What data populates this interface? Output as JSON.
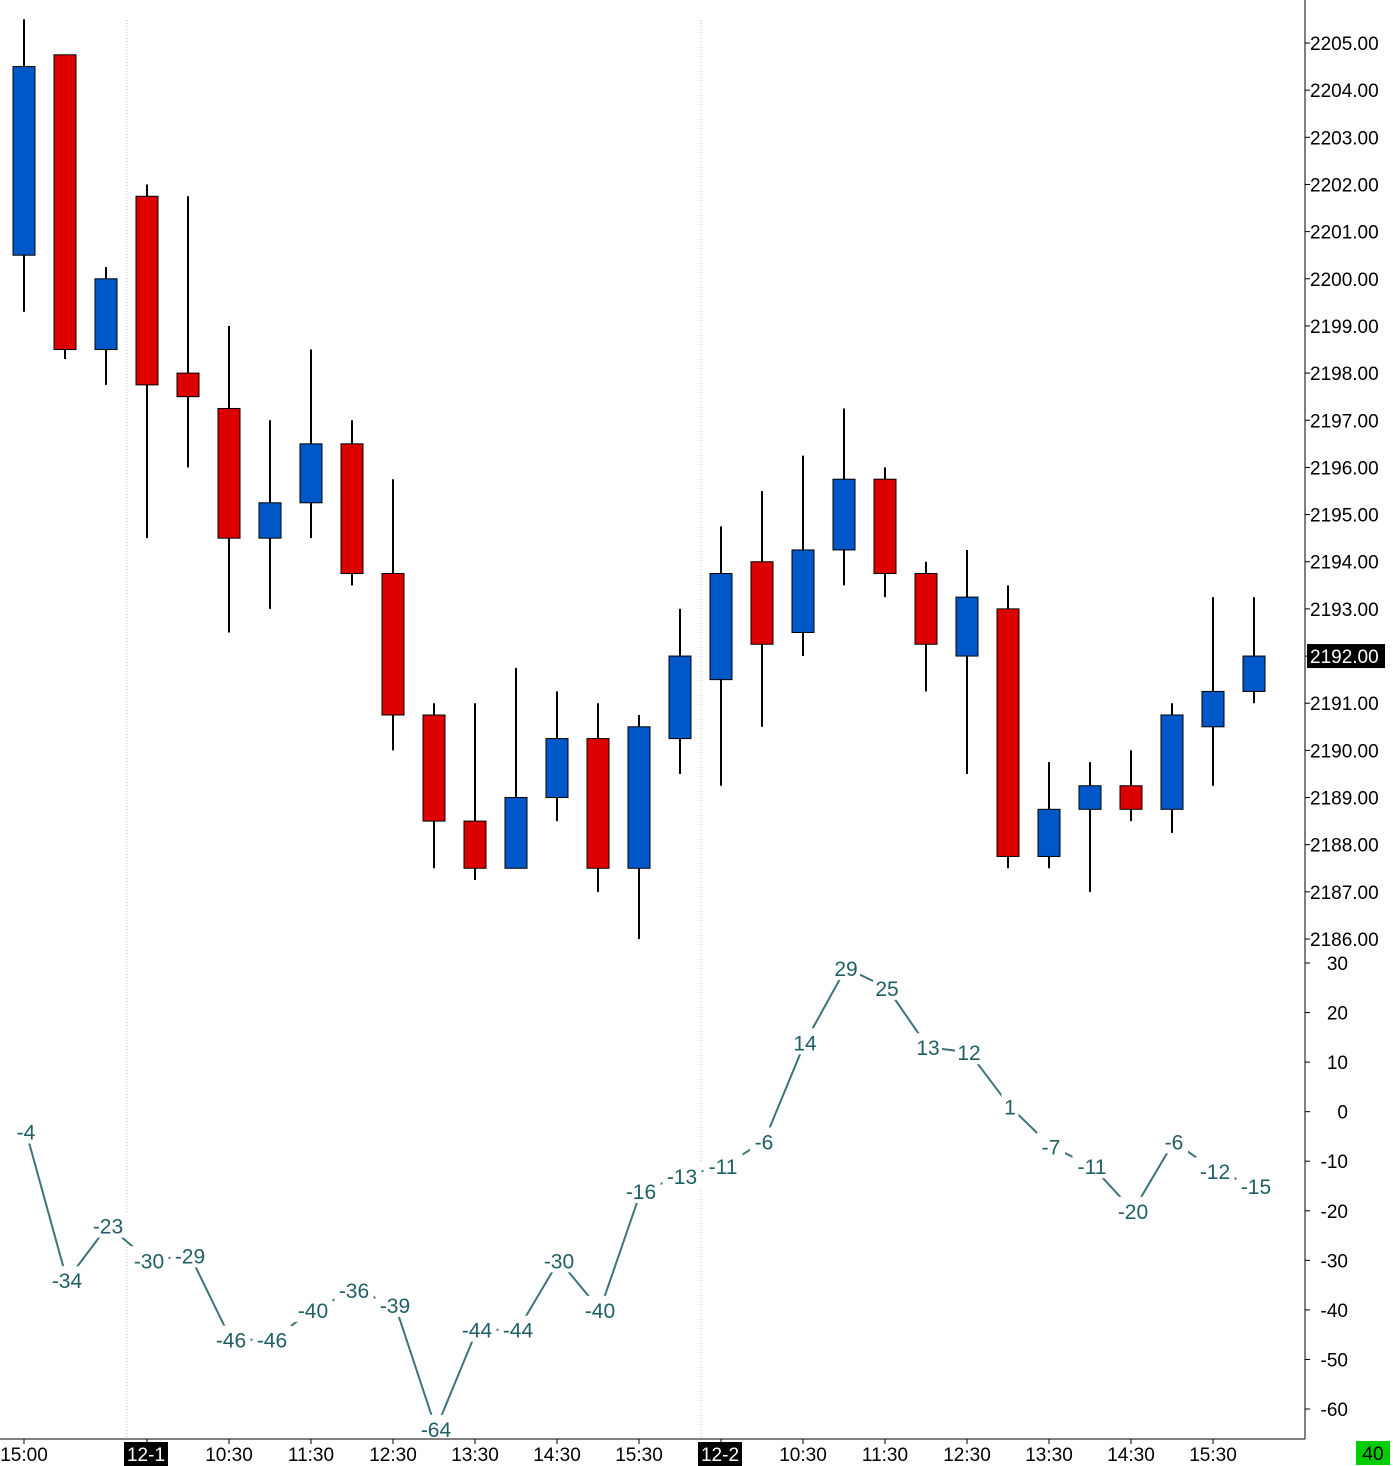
{
  "chart_data": [
    {
      "type": "candlestick",
      "ylim": [
        2185.6,
        2206.0
      ],
      "y_ticks": [
        "2205.00",
        "2204.00",
        "2203.00",
        "2202.00",
        "2201.00",
        "2200.00",
        "2199.00",
        "2198.00",
        "2197.00",
        "2196.00",
        "2195.00",
        "2194.00",
        "2193.00",
        "2192.00",
        "2191.00",
        "2190.00",
        "2189.00",
        "2188.00",
        "2187.00",
        "2186.00"
      ],
      "last_price_label": "2192.00",
      "last_price": 2192.0,
      "colors": {
        "up": "#0057c8",
        "down": "#dd0000",
        "wick": "#000000"
      },
      "candles": [
        {
          "o": 2200.5,
          "h": 2205.5,
          "l": 2199.3,
          "c": 2204.5
        },
        {
          "o": 2204.75,
          "h": 2204.75,
          "l": 2198.3,
          "c": 2198.5
        },
        {
          "o": 2198.5,
          "h": 2200.25,
          "l": 2197.75,
          "c": 2200.0
        },
        {
          "o": 2201.75,
          "h": 2202.0,
          "l": 2194.5,
          "c": 2197.75
        },
        {
          "o": 2198.0,
          "h": 2201.75,
          "l": 2196.0,
          "c": 2197.5
        },
        {
          "o": 2197.25,
          "h": 2199.0,
          "l": 2192.5,
          "c": 2194.5
        },
        {
          "o": 2194.5,
          "h": 2197.0,
          "l": 2193.0,
          "c": 2195.25
        },
        {
          "o": 2195.25,
          "h": 2198.5,
          "l": 2194.5,
          "c": 2196.5
        },
        {
          "o": 2196.5,
          "h": 2197.0,
          "l": 2193.5,
          "c": 2193.75
        },
        {
          "o": 2193.75,
          "h": 2195.75,
          "l": 2190.0,
          "c": 2190.75
        },
        {
          "o": 2190.75,
          "h": 2191.0,
          "l": 2187.5,
          "c": 2188.5
        },
        {
          "o": 2188.5,
          "h": 2191.0,
          "l": 2187.25,
          "c": 2187.5
        },
        {
          "o": 2187.5,
          "h": 2191.75,
          "l": 2187.5,
          "c": 2189.0
        },
        {
          "o": 2189.0,
          "h": 2191.25,
          "l": 2188.5,
          "c": 2190.25
        },
        {
          "o": 2190.25,
          "h": 2191.0,
          "l": 2187.0,
          "c": 2187.5
        },
        {
          "o": 2187.5,
          "h": 2190.75,
          "l": 2186.0,
          "c": 2190.5
        },
        {
          "o": 2190.25,
          "h": 2193.0,
          "l": 2189.5,
          "c": 2192.0
        },
        {
          "o": 2191.5,
          "h": 2194.75,
          "l": 2189.25,
          "c": 2193.75
        },
        {
          "o": 2194.0,
          "h": 2195.5,
          "l": 2190.5,
          "c": 2192.25
        },
        {
          "o": 2192.5,
          "h": 2196.25,
          "l": 2192.0,
          "c": 2194.25
        },
        {
          "o": 2194.25,
          "h": 2197.25,
          "l": 2193.5,
          "c": 2195.75
        },
        {
          "o": 2195.75,
          "h": 2196.0,
          "l": 2193.25,
          "c": 2193.75
        },
        {
          "o": 2193.75,
          "h": 2194.0,
          "l": 2191.25,
          "c": 2192.25
        },
        {
          "o": 2192.0,
          "h": 2194.25,
          "l": 2189.5,
          "c": 2193.25
        },
        {
          "o": 2193.0,
          "h": 2193.5,
          "l": 2187.5,
          "c": 2187.75
        },
        {
          "o": 2187.75,
          "h": 2189.75,
          "l": 2187.5,
          "c": 2188.75
        },
        {
          "o": 2188.75,
          "h": 2189.75,
          "l": 2187.0,
          "c": 2189.25
        },
        {
          "o": 2189.25,
          "h": 2190.0,
          "l": 2188.5,
          "c": 2188.75
        },
        {
          "o": 2188.75,
          "h": 2191.0,
          "l": 2188.25,
          "c": 2190.75
        },
        {
          "o": 2190.5,
          "h": 2193.25,
          "l": 2189.25,
          "c": 2191.25
        },
        {
          "o": 2191.25,
          "h": 2193.25,
          "l": 2191.0,
          "c": 2192.0
        }
      ]
    },
    {
      "type": "line",
      "ylim": [
        -66,
        31
      ],
      "y_ticks": [
        "30",
        "20",
        "10",
        "0",
        "-10",
        "-20",
        "-30",
        "-40",
        "-50",
        "-60"
      ],
      "y_tick_values": [
        30,
        20,
        10,
        0,
        -10,
        -20,
        -30,
        -40,
        -50,
        -60
      ],
      "line_color": "#3f7378",
      "values": [
        -4,
        -34,
        -23,
        -30,
        -29,
        -46,
        -46,
        -40,
        -36,
        -39,
        -64,
        -44,
        -44,
        -30,
        -40,
        -16,
        -13,
        -11,
        -6,
        14,
        29,
        25,
        13,
        12,
        1,
        -7,
        -11,
        -20,
        -6,
        -12,
        -15
      ],
      "labels": [
        "-4",
        "-34",
        "-23",
        "-30",
        "-29",
        "-46",
        "-46",
        "-40",
        "-36",
        "-39",
        "-64",
        "-44",
        "-44",
        "-30",
        "-40",
        "-16",
        "-13",
        "-11",
        "-6",
        "14",
        "29",
        "25",
        "13",
        "12",
        "1",
        "-7",
        "-11",
        "-20",
        "-6",
        "-12",
        "-15"
      ]
    }
  ],
  "x_axis": {
    "labels": [
      {
        "text": "15:00",
        "bar": 0,
        "highlight": false
      },
      {
        "text": "12-1",
        "bar": 3,
        "highlight": true
      },
      {
        "text": "10:30",
        "bar": 5,
        "highlight": false
      },
      {
        "text": "11:30",
        "bar": 7,
        "highlight": false
      },
      {
        "text": "12:30",
        "bar": 9,
        "highlight": false
      },
      {
        "text": "13:30",
        "bar": 11,
        "highlight": false
      },
      {
        "text": "14:30",
        "bar": 13,
        "highlight": false
      },
      {
        "text": "15:30",
        "bar": 15,
        "highlight": false
      },
      {
        "text": "12-2",
        "bar": 17,
        "highlight": true
      },
      {
        "text": "10:30",
        "bar": 19,
        "highlight": false
      },
      {
        "text": "11:30",
        "bar": 21,
        "highlight": false
      },
      {
        "text": "12:30",
        "bar": 23,
        "highlight": false
      },
      {
        "text": "13:30",
        "bar": 25,
        "highlight": false
      },
      {
        "text": "14:30",
        "bar": 27,
        "highlight": false
      },
      {
        "text": "15:30",
        "bar": 29,
        "highlight": false
      }
    ],
    "session_breaks": [
      3,
      17
    ]
  },
  "corner_badge": "40",
  "corner_badge_color": "#00cc00"
}
